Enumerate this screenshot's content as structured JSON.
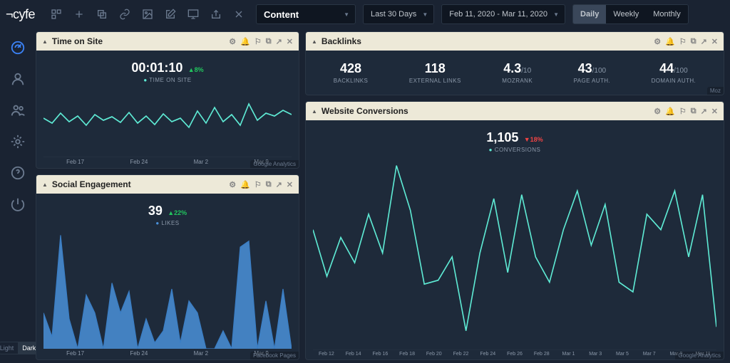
{
  "brand": "cyfe",
  "topbar": {
    "content_select": "Content",
    "range_select": "Last 30 Days",
    "date_range": "Feb 11, 2020 - Mar 11, 2020",
    "granularity": {
      "options": [
        "Daily",
        "Weekly",
        "Monthly"
      ],
      "active": "Daily"
    }
  },
  "theme_toggle": {
    "options": [
      "Light",
      "Dark"
    ],
    "active": "Dark"
  },
  "widgets": {
    "time_on_site": {
      "title": "Time on Site",
      "metric_value": "00:01:10",
      "metric_delta": "▲8%",
      "metric_delta_dir": "up",
      "metric_label": "TIME ON SITE",
      "source": "Google Analytics",
      "chart": {
        "type": "line",
        "line_color": "#5eead4",
        "grid_color": "#2a3645",
        "x_labels": [
          "Feb 17",
          "Feb 24",
          "Mar 2",
          "Mar 9"
        ],
        "y_range": [
          0,
          100
        ],
        "values": [
          55,
          48,
          62,
          50,
          58,
          45,
          60,
          52,
          57,
          49,
          63,
          48,
          58,
          46,
          61,
          50,
          55,
          42,
          65,
          48,
          70,
          50,
          60,
          45,
          75,
          52,
          62,
          58,
          66,
          60
        ]
      }
    },
    "backlinks": {
      "title": "Backlinks",
      "source": "Moz",
      "stats": [
        {
          "value": "428",
          "suffix": "",
          "label": "BACKLINKS"
        },
        {
          "value": "118",
          "suffix": "",
          "label": "EXTERNAL LINKS"
        },
        {
          "value": "4.3",
          "suffix": "/10",
          "label": "MOZRANK"
        },
        {
          "value": "43",
          "suffix": "/100",
          "label": "PAGE AUTH."
        },
        {
          "value": "44",
          "suffix": "/100",
          "label": "DOMAIN AUTH."
        }
      ]
    },
    "social": {
      "title": "Social Engagement",
      "metric_value": "39",
      "metric_delta": "▲22%",
      "metric_delta_dir": "up",
      "metric_label": "LIKES",
      "source": "Facebook Pages",
      "chart": {
        "type": "area",
        "fill_color": "#4a90d9",
        "line_color": "#3a7ec5",
        "grid_color": "#2a3645",
        "x_labels": [
          "Feb 17",
          "Feb 24",
          "Mar 2",
          "Mar 9"
        ],
        "y_range": [
          0,
          100
        ],
        "values": [
          30,
          10,
          95,
          25,
          0,
          45,
          30,
          0,
          55,
          30,
          48,
          0,
          25,
          5,
          15,
          50,
          5,
          40,
          30,
          0,
          0,
          15,
          0,
          85,
          90,
          0,
          40,
          0,
          50,
          0
        ]
      }
    },
    "conversions": {
      "title": "Website Conversions",
      "metric_value": "1,105",
      "metric_delta": "▼18%",
      "metric_delta_dir": "down",
      "metric_label": "CONVERSIONS",
      "source": "Google Analytics",
      "chart": {
        "type": "line",
        "line_color": "#5eead4",
        "grid_color": "#2a3645",
        "x_labels": [
          "Feb 12",
          "Feb 14",
          "Feb 16",
          "Feb 18",
          "Feb 20",
          "Feb 22",
          "Feb 24",
          "Feb 26",
          "Feb 28",
          "Mar 1",
          "Mar 3",
          "Mar 5",
          "Mar 7",
          "Mar 9",
          "Mar 11"
        ],
        "y_range": [
          0,
          100
        ],
        "values": [
          62,
          38,
          58,
          45,
          70,
          50,
          95,
          72,
          34,
          36,
          48,
          10,
          50,
          78,
          40,
          80,
          48,
          35,
          62,
          82,
          54,
          75,
          35,
          30,
          70,
          62,
          82,
          48,
          80,
          12
        ]
      }
    },
    "header_actions": [
      "⚙",
      "🔔",
      "⚐",
      "⧉",
      "↗",
      "✕"
    ]
  },
  "colors": {
    "bg": "#1a2332",
    "panel": "#1e2a3a",
    "header": "#ede9d8",
    "teal": "#5eead4",
    "blue": "#4a90d9",
    "text_muted": "#8b98a9"
  }
}
